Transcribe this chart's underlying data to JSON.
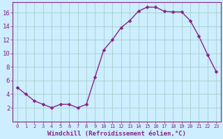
{
  "x": [
    0,
    1,
    2,
    3,
    4,
    5,
    6,
    7,
    8,
    9,
    10,
    11,
    12,
    13,
    14,
    15,
    16,
    17,
    18,
    19,
    20,
    21,
    22,
    23
  ],
  "y": [
    5,
    4,
    3,
    2.5,
    2,
    2.5,
    2.5,
    2,
    2.5,
    6.5,
    10.5,
    12,
    13.8,
    14.8,
    16.2,
    16.8,
    16.8,
    16.2,
    16.1,
    16.1,
    14.8,
    12.5,
    9.8,
    7.3
  ],
  "line_color": "#882288",
  "marker_color": "#882288",
  "bg_color": "#cceeff",
  "grid_color": "#aacccc",
  "xlabel": "Windchill (Refroidissement éolien,°C)",
  "xlabel_color": "#882288",
  "tick_color": "#882288",
  "spine_color": "#882288",
  "ylim": [
    0,
    17.5
  ],
  "xlim": [
    -0.5,
    23.5
  ],
  "yticks": [
    2,
    4,
    6,
    8,
    10,
    12,
    14,
    16
  ],
  "xticks": [
    0,
    1,
    2,
    3,
    4,
    5,
    6,
    7,
    8,
    9,
    10,
    11,
    12,
    13,
    14,
    15,
    16,
    17,
    18,
    19,
    20,
    21,
    22,
    23
  ],
  "xlabel_fontsize": 6.5,
  "tick_fontsize_x": 5.0,
  "tick_fontsize_y": 6.5,
  "linewidth": 1.0,
  "markersize": 2.5
}
